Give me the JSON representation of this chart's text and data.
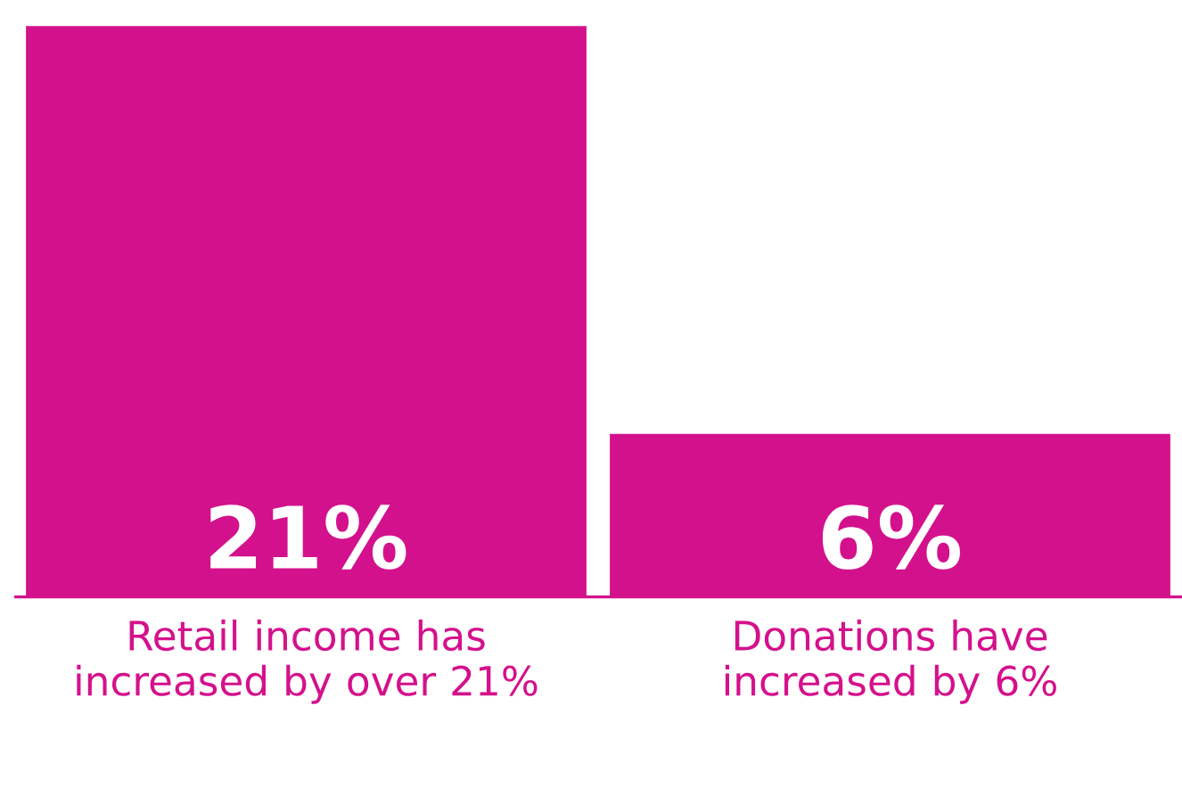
{
  "chart_data": {
    "type": "bar",
    "categories": [
      "Retail income has increased by over 21%",
      "Donations have increased by 6%"
    ],
    "values": [
      21,
      6
    ],
    "value_labels": [
      "21%",
      "6%"
    ],
    "color": "#d4118c",
    "ylim": [
      0,
      21
    ],
    "tick_labels": "x"
  }
}
